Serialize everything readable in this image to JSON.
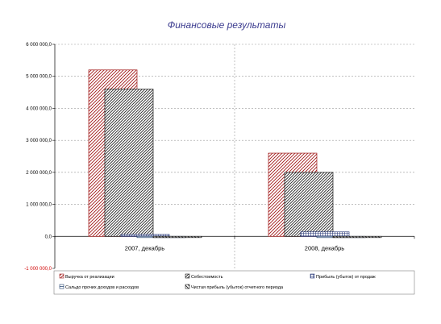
{
  "chart_data": {
    "type": "bar",
    "title": "Финансовые результаты",
    "categories": [
      "2007, декабрь",
      "2008, декабрь"
    ],
    "series": [
      {
        "name": "Выручка от реализации",
        "values": [
          5200000,
          2600000
        ],
        "color": "#a01818",
        "pattern": "diag-right"
      },
      {
        "name": "Себестоимость",
        "values": [
          4600000,
          2000000
        ],
        "color": "#1a1a1a",
        "pattern": "diag-right-dense"
      },
      {
        "name": "Прибыль (убыток) от продаж",
        "values": [
          60000,
          140000
        ],
        "color": "#2a3a7a",
        "pattern": "grid"
      },
      {
        "name": "Сальдо прочих доходов и расходов",
        "values": [
          -20000,
          -10000
        ],
        "color": "#1a3a6a",
        "pattern": "horiz"
      },
      {
        "name": "Чистая прибыль (убыток) отчетного периода",
        "values": [
          -10000,
          -5000
        ],
        "color": "#1a1a1a",
        "pattern": "diag-left"
      }
    ],
    "ylim": [
      -1000000,
      6000000
    ],
    "yticks": [
      6000000,
      5000000,
      4000000,
      3000000,
      2000000,
      1000000,
      0,
      -1000000
    ],
    "ytick_labels": [
      "6 000 000,0",
      "5 000 000,0",
      "4 000 000,0",
      "3 000 000,0",
      "2 000 000,0",
      "1 000 000,0",
      "0,0",
      "-1 000 000,0"
    ],
    "negative_color": "#d00000",
    "grid": true,
    "legend_position": "bottom"
  }
}
